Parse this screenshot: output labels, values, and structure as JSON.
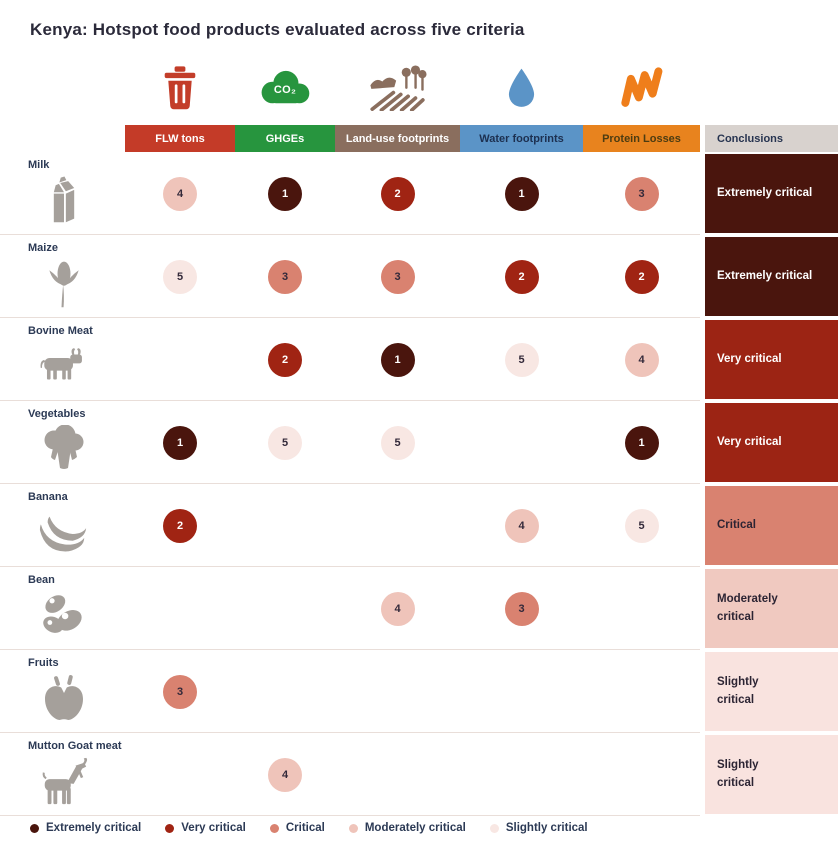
{
  "title": "Kenya: Hotspot food products evaluated across five criteria",
  "columns": [
    {
      "key": "flw",
      "label": "FLW tons",
      "bg": "#c43b28",
      "text": "#ffffff",
      "icon": "trash-icon"
    },
    {
      "key": "ghge",
      "label": "GHGEs",
      "bg": "#27953e",
      "text": "#ffffff",
      "icon": "co2-cloud-icon",
      "icon_label": "CO₂"
    },
    {
      "key": "land",
      "label": "Land-use footprints",
      "bg": "#8a6e5e",
      "text": "#ffffff",
      "icon": "field-icon"
    },
    {
      "key": "water",
      "label": "Water footprints",
      "bg": "#5b94c7",
      "text": "#1d3050",
      "icon": "water-drop-icon"
    },
    {
      "key": "protein",
      "label": "Protein Losses",
      "bg": "#e8831e",
      "text": "#4c3c12",
      "icon": "protein-squiggle-icon"
    }
  ],
  "conclusions_header": {
    "label": "Conclusions",
    "bg": "#d8d2ce",
    "text": "#273450"
  },
  "severity_colors": {
    "1": {
      "bg": "#4a150d",
      "text": "#ffffff"
    },
    "2": {
      "bg": "#a02413",
      "text": "#ffffff"
    },
    "3": {
      "bg": "#d98270",
      "text": "#33293a"
    },
    "4": {
      "bg": "#efc4ba",
      "text": "#33293a"
    },
    "5": {
      "bg": "#f8e7e3",
      "text": "#33293a"
    }
  },
  "conclusion_styles": {
    "extremely": {
      "bg": "#4a150d",
      "text": "#ffffff"
    },
    "very": {
      "bg": "#9c2414",
      "text": "#ffffff"
    },
    "critical": {
      "bg": "#d98270",
      "text": "#2c2433"
    },
    "moderately": {
      "bg": "#f0c9c0",
      "text": "#2c2433"
    },
    "slightly": {
      "bg": "#f9e3df",
      "text": "#2c2433"
    }
  },
  "rows": [
    {
      "product": "Milk",
      "icon": "milk-carton-icon",
      "scores": {
        "flw": 4,
        "ghge": 1,
        "land": 2,
        "water": 1,
        "protein": 3
      },
      "conclusion": "Extremely critical",
      "conclusion_lines": [
        "Extremely critical"
      ],
      "level": "extremely"
    },
    {
      "product": "Maize",
      "icon": "maize-icon",
      "scores": {
        "flw": 5,
        "ghge": 3,
        "land": 3,
        "water": 2,
        "protein": 2
      },
      "conclusion": "Extremely critical",
      "conclusion_lines": [
        "Extremely critical"
      ],
      "level": "extremely"
    },
    {
      "product": "Bovine Meat",
      "icon": "cow-icon",
      "scores": {
        "ghge": 2,
        "land": 1,
        "water": 5,
        "protein": 4
      },
      "conclusion": "Very critical",
      "conclusion_lines": [
        "Very critical"
      ],
      "level": "very"
    },
    {
      "product": "Vegetables",
      "icon": "broccoli-icon",
      "scores": {
        "flw": 1,
        "ghge": 5,
        "land": 5,
        "protein": 1
      },
      "conclusion": "Very critical",
      "conclusion_lines": [
        "Very critical"
      ],
      "level": "very"
    },
    {
      "product": "Banana",
      "icon": "banana-icon",
      "scores": {
        "flw": 2,
        "water": 4,
        "protein": 5
      },
      "conclusion": "Critical",
      "conclusion_lines": [
        "Critical"
      ],
      "level": "critical"
    },
    {
      "product": "Bean",
      "icon": "bean-icon",
      "scores": {
        "land": 4,
        "water": 3
      },
      "conclusion": "Moderately critical",
      "conclusion_lines": [
        "Moderately",
        "critical"
      ],
      "level": "moderately"
    },
    {
      "product": "Fruits",
      "icon": "apple-icon",
      "scores": {
        "flw": 3
      },
      "conclusion": "Slightly critical",
      "conclusion_lines": [
        "Slightly",
        "critical"
      ],
      "level": "slightly"
    },
    {
      "product": "Mutton Goat meat",
      "icon": "goat-icon",
      "scores": {
        "ghge": 4
      },
      "conclusion": "Slightly critical",
      "conclusion_lines": [
        "Slightly",
        "critical"
      ],
      "level": "slightly"
    }
  ],
  "legend": [
    {
      "label": "Extremely critical",
      "color": "#4a150d"
    },
    {
      "label": "Very critical",
      "color": "#a02413"
    },
    {
      "label": "Critical",
      "color": "#d98270"
    },
    {
      "label": "Moderately critical",
      "color": "#efc4ba"
    },
    {
      "label": "Slightly critical",
      "color": "#f8e7e3"
    }
  ],
  "chart_data": {
    "type": "heatmap",
    "title": "Kenya: Hotspot food products evaluated across five criteria",
    "columns": [
      "FLW tons",
      "GHGEs",
      "Land-use footprints",
      "Water footprints",
      "Protein Losses"
    ],
    "rows": [
      "Milk",
      "Maize",
      "Bovine Meat",
      "Vegetables",
      "Banana",
      "Bean",
      "Fruits",
      "Mutton Goat meat"
    ],
    "values": [
      [
        4,
        1,
        2,
        1,
        3
      ],
      [
        5,
        3,
        3,
        2,
        2
      ],
      [
        null,
        2,
        1,
        5,
        4
      ],
      [
        1,
        5,
        5,
        null,
        1
      ],
      [
        2,
        null,
        null,
        4,
        5
      ],
      [
        null,
        null,
        4,
        3,
        null
      ],
      [
        3,
        null,
        null,
        null,
        null
      ],
      [
        null,
        4,
        null,
        null,
        null
      ]
    ],
    "conclusions": [
      "Extremely critical",
      "Extremely critical",
      "Very critical",
      "Very critical",
      "Critical",
      "Moderately critical",
      "Slightly critical",
      "Slightly critical"
    ],
    "scale_meaning": {
      "1": "Extremely critical",
      "2": "Very critical",
      "3": "Critical",
      "4": "Moderately critical",
      "5": "Slightly critical"
    },
    "legend": [
      "Extremely critical",
      "Very critical",
      "Critical",
      "Moderately critical",
      "Slightly critical"
    ],
    "legend_position": "bottom"
  }
}
